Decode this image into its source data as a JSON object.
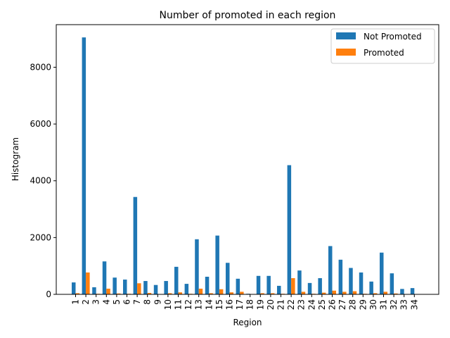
{
  "chart_data": {
    "type": "bar",
    "title": "Number of promoted in each region",
    "xlabel": "Region",
    "ylabel": "Histogram",
    "ylim": [
      0,
      9500
    ],
    "yticks": [
      0,
      2000,
      4000,
      6000,
      8000
    ],
    "legend_position": "top-right",
    "grid": false,
    "categories": [
      "1",
      "2",
      "3",
      "4",
      "5",
      "6",
      "7",
      "8",
      "9",
      "10",
      "11",
      "12",
      "13",
      "14",
      "15",
      "16",
      "17",
      "18",
      "19",
      "20",
      "21",
      "22",
      "23",
      "24",
      "25",
      "26",
      "27",
      "28",
      "29",
      "30",
      "31",
      "32",
      "33",
      "34"
    ],
    "series": [
      {
        "name": "Not Promoted",
        "color": "#1f77b4",
        "values": [
          420,
          9050,
          250,
          1160,
          590,
          520,
          3430,
          470,
          330,
          470,
          970,
          370,
          1940,
          620,
          2070,
          1110,
          550,
          20,
          650,
          650,
          300,
          4550,
          840,
          400,
          570,
          1700,
          1220,
          930,
          770,
          450,
          1470,
          740,
          190,
          220
        ]
      },
      {
        "name": "Promoted",
        "color": "#ff7f0e",
        "values": [
          40,
          770,
          20,
          200,
          30,
          20,
          390,
          50,
          10,
          40,
          70,
          20,
          200,
          40,
          180,
          70,
          90,
          5,
          40,
          40,
          20,
          570,
          90,
          20,
          60,
          130,
          90,
          110,
          20,
          40,
          90,
          30,
          5,
          5
        ]
      }
    ]
  }
}
